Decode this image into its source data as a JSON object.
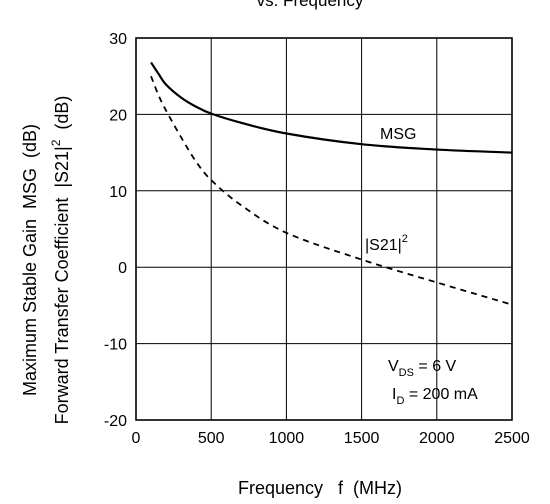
{
  "chart_data": {
    "type": "line",
    "title": "vs. Frequency",
    "xlabel": "Frequency   f  (MHz)",
    "ylabel": {
      "line1_prefix": "Maximum Stable Gain  MSG  (dB)",
      "line2_prefix": "Forward Transfer Coefficient  |S21|",
      "line2_sup": "2",
      "line2_suffix": "  (dB)"
    },
    "xlim": [
      0,
      2500
    ],
    "ylim": [
      -20,
      30
    ],
    "x_ticks": [
      "0",
      "500",
      "1000",
      "1500",
      "2000",
      "2500"
    ],
    "y_ticks": [
      "-20",
      "-10",
      "0",
      "10",
      "20",
      "30"
    ],
    "grid": true,
    "series": [
      {
        "name": "MSG",
        "style": "solid",
        "x": [
          100,
          150,
          200,
          300,
          400,
          500,
          700,
          1000,
          1500,
          2000,
          2500
        ],
        "y": [
          26.8,
          25.3,
          23.9,
          22.2,
          21.0,
          20.1,
          18.9,
          17.5,
          16.1,
          15.4,
          15.0
        ]
      },
      {
        "name": "|S21|2",
        "label_main": "|S21|",
        "label_sup": "2",
        "style": "dashed",
        "x": [
          100,
          150,
          200,
          300,
          400,
          500,
          700,
          1000,
          1500,
          2000,
          2500
        ],
        "y": [
          25.0,
          22.5,
          20.5,
          17.0,
          13.8,
          11.4,
          8.1,
          4.5,
          1.0,
          -2.0,
          -4.9
        ]
      }
    ],
    "annotation": {
      "line1_main": "V",
      "line1_sub": "DS",
      "line1_rest": " = 6 V",
      "line2_main": "I",
      "line2_sub": "D",
      "line2_rest": " = 200 mA"
    }
  }
}
